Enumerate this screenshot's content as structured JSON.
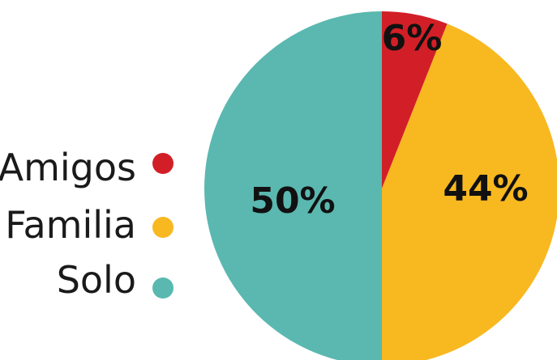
{
  "chart_data": {
    "type": "pie",
    "slices": [
      {
        "label": "Amigos",
        "value": 6,
        "display": "6%",
        "color": "#d21f27"
      },
      {
        "label": "Familia",
        "value": 44,
        "display": "44%",
        "color": "#f8b820"
      },
      {
        "label": "Solo",
        "value": 50,
        "display": "50%",
        "color": "#5ab8b0"
      }
    ],
    "legend_position": "left",
    "start_angle": "top",
    "direction": "clockwise"
  }
}
